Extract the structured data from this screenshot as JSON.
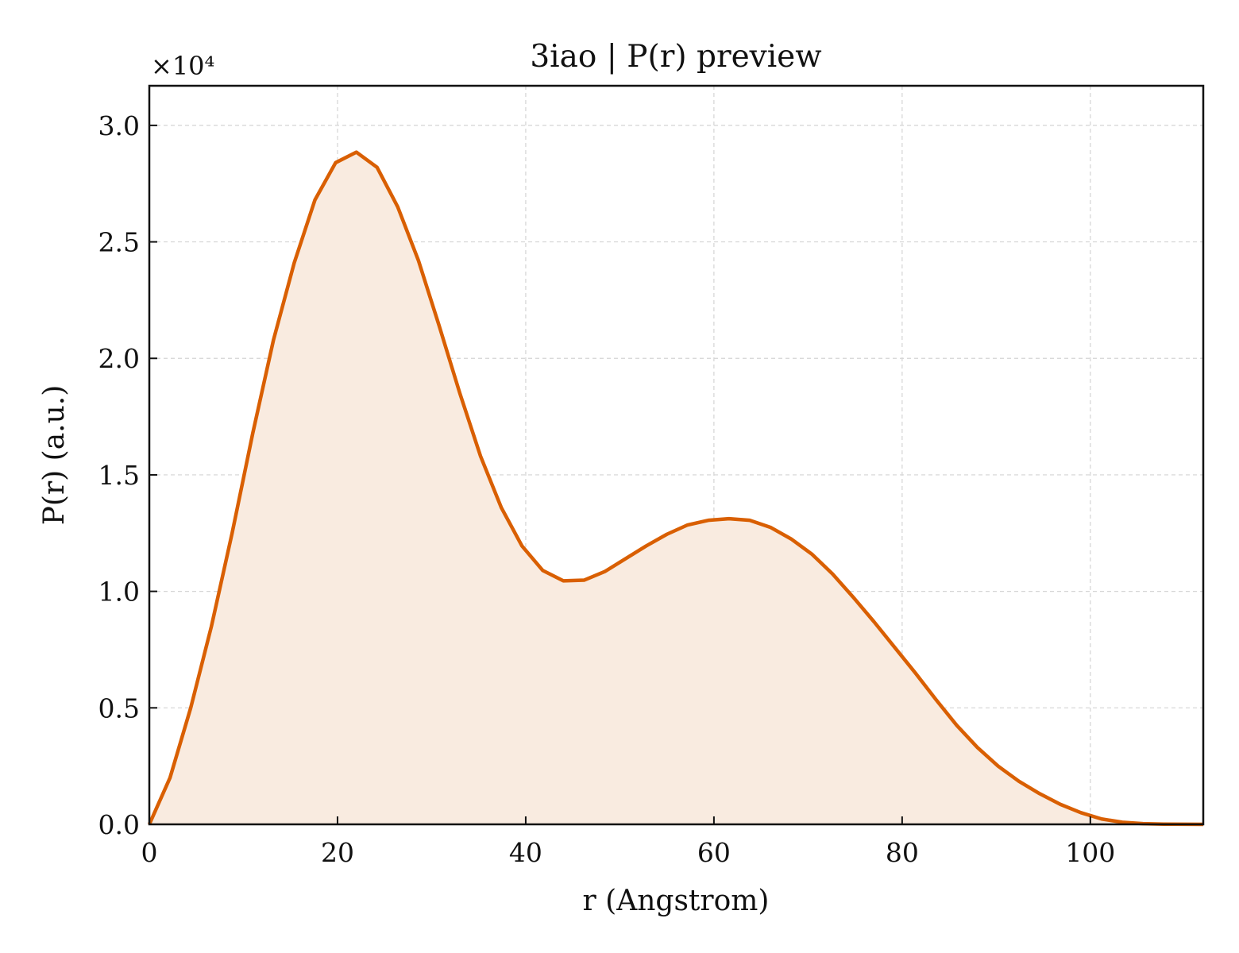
{
  "chart_data": {
    "type": "area",
    "title": "3iao | P(r) preview",
    "xlabel": "r (Angstrom)",
    "ylabel": "P(r) (a.u.)",
    "y_offset_label": "×10⁴",
    "y_scale": 10000,
    "xlim": [
      0,
      112
    ],
    "ylim": [
      0,
      31700
    ],
    "x_ticks": [
      0,
      20,
      40,
      60,
      80,
      100
    ],
    "y_ticks": [
      0,
      5000,
      10000,
      15000,
      20000,
      25000,
      30000
    ],
    "y_tick_labels": [
      "0.0",
      "0.5",
      "1.0",
      "1.5",
      "2.0",
      "2.5",
      "3.0"
    ],
    "grid": true,
    "line_color": "#d95f02",
    "fill_color": "#f9ebe0",
    "series": [
      {
        "x": [
          0,
          2.2,
          4.4,
          6.6,
          8.8,
          11.0,
          13.2,
          15.4,
          17.6,
          19.8,
          22.0,
          24.2,
          26.4,
          28.6,
          30.8,
          33.0,
          35.2,
          37.4,
          39.6,
          41.8,
          44.0,
          46.2,
          48.4,
          50.6,
          52.8,
          55.0,
          57.2,
          59.4,
          61.6,
          63.8,
          66.0,
          68.2,
          70.4,
          72.6,
          74.8,
          77.0,
          79.2,
          81.4,
          83.6,
          85.8,
          88.0,
          90.2,
          92.4,
          94.6,
          96.8,
          99.0,
          101.2,
          103.4,
          105.6,
          107.8,
          110.0,
          112.0
        ],
        "y": [
          0,
          2000,
          5000,
          8500,
          12500,
          16800,
          20800,
          24100,
          26800,
          28400,
          28850,
          28200,
          26500,
          24200,
          21400,
          18500,
          15800,
          13600,
          11950,
          10900,
          10450,
          10480,
          10850,
          11400,
          11950,
          12450,
          12850,
          13050,
          13120,
          13050,
          12750,
          12250,
          11600,
          10750,
          9750,
          8700,
          7600,
          6500,
          5350,
          4250,
          3300,
          2500,
          1850,
          1320,
          860,
          500,
          230,
          90,
          30,
          10,
          4,
          0
        ]
      }
    ]
  }
}
